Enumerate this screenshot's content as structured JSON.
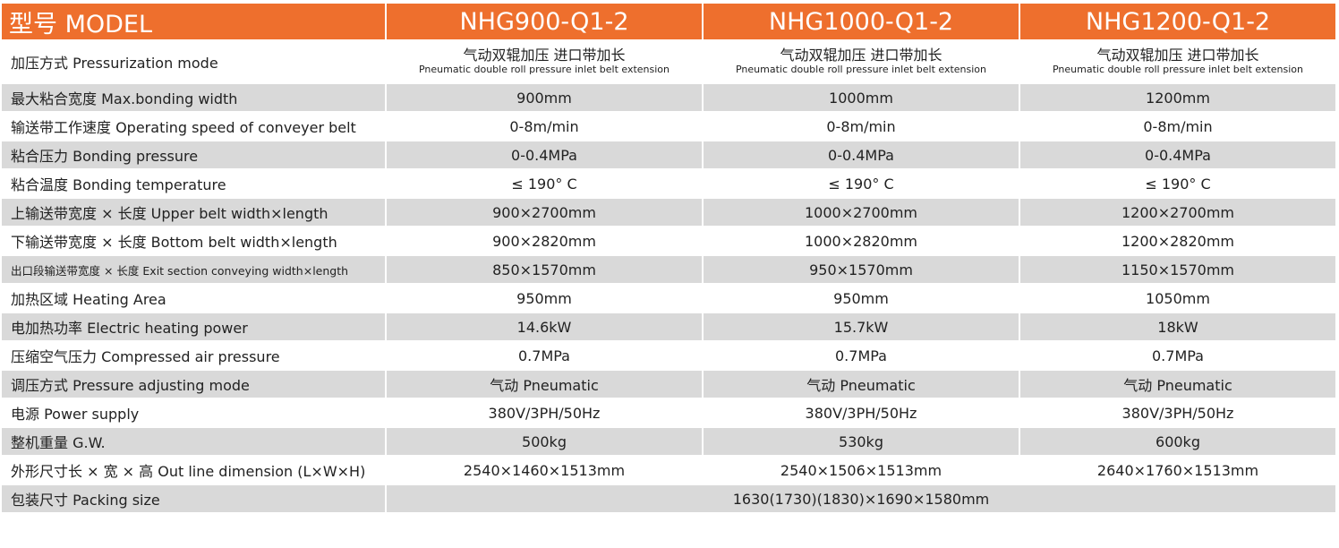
{
  "table": {
    "header": [
      "型号 MODEL",
      "NHG900-Q1-2",
      "NHG1000-Q1-2",
      "NHG1200-Q1-2"
    ],
    "rows": [
      {
        "label": "加压方式 Pressurization mode",
        "values": [
          {
            "zh": "气动双辊加压 进口带加长",
            "en": "Pneumatic double roll pressure inlet belt extension"
          },
          {
            "zh": "气动双辊加压 进口带加长",
            "en": "Pneumatic double roll pressure inlet belt extension"
          },
          {
            "zh": "气动双辊加压 进口带加长",
            "en": "Pneumatic double roll pressure inlet belt extension"
          }
        ]
      },
      {
        "label": "最大粘合宽度 Max.bonding width",
        "values": [
          "900mm",
          "1000mm",
          "1200mm"
        ]
      },
      {
        "label": "输送带工作速度 Operating speed of conveyer belt",
        "values": [
          "0-8m/min",
          "0-8m/min",
          "0-8m/min"
        ]
      },
      {
        "label": "粘合压力 Bonding pressure",
        "values": [
          "0-0.4MPa",
          "0-0.4MPa",
          "0-0.4MPa"
        ]
      },
      {
        "label": "粘合温度 Bonding temperature",
        "values": [
          "≤ 190° C",
          "≤ 190° C",
          "≤ 190° C"
        ]
      },
      {
        "label": "上输送带宽度 × 长度 Upper belt width×length",
        "values": [
          "900×2700mm",
          "1000×2700mm",
          "1200×2700mm"
        ]
      },
      {
        "label": "下输送带宽度 × 长度 Bottom belt width×length",
        "values": [
          "900×2820mm",
          "1000×2820mm",
          "1200×2820mm"
        ]
      },
      {
        "label": "出口段输送带宽度 × 长度 Exit section conveying width×length",
        "values": [
          "850×1570mm",
          "950×1570mm",
          "1150×1570mm"
        ]
      },
      {
        "label": "加热区域 Heating Area",
        "values": [
          "950mm",
          "950mm",
          "1050mm"
        ]
      },
      {
        "label": "电加热功率 Electric heating power",
        "values": [
          "14.6kW",
          "15.7kW",
          "18kW"
        ]
      },
      {
        "label": "压缩空气压力 Compressed air pressure",
        "values": [
          "0.7MPa",
          "0.7MPa",
          "0.7MPa"
        ]
      },
      {
        "label": "调压方式 Pressure adjusting mode",
        "values": [
          "气动 Pneumatic",
          "气动 Pneumatic",
          "气动 Pneumatic"
        ]
      },
      {
        "label": "电源 Power supply",
        "values": [
          "380V/3PH/50Hz",
          "380V/3PH/50Hz",
          "380V/3PH/50Hz"
        ]
      },
      {
        "label": "整机重量 G.W.",
        "values": [
          "500kg",
          "530kg",
          "600kg"
        ]
      },
      {
        "label": "外形尺寸长 × 宽 × 高 Out line dimension (L×W×H)",
        "values": [
          "2540×1460×1513mm",
          "2540×1506×1513mm",
          "2640×1760×1513mm"
        ]
      },
      {
        "label": "包装尺寸 Packing size",
        "values": [
          "1630(1730)(1830)×1690×1580mm"
        ]
      }
    ]
  }
}
